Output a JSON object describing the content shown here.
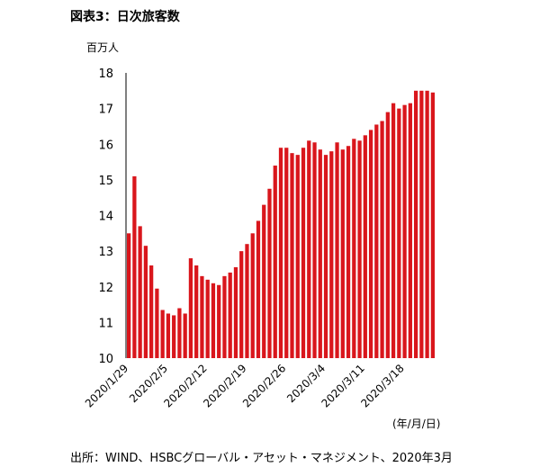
{
  "header": {
    "title": "図表3：日次旅客数"
  },
  "footer": {
    "source": "出所：WIND、HSBCグローバル・アセット・マネジメント、2020年3月"
  },
  "chart_data": {
    "type": "bar",
    "ylabel": "百万人",
    "xlabel": "(年/月/日)",
    "ylim": [
      10,
      18
    ],
    "yticks": [
      10,
      11,
      12,
      13,
      14,
      15,
      16,
      17,
      18
    ],
    "bar_color": "#d9161c",
    "tick_labels": [
      {
        "index": 0,
        "label": "2020/1/29"
      },
      {
        "index": 7,
        "label": "2020/2/5"
      },
      {
        "index": 14,
        "label": "2020/2/12"
      },
      {
        "index": 21,
        "label": "2020/2/19"
      },
      {
        "index": 28,
        "label": "2020/2/26"
      },
      {
        "index": 35,
        "label": "2020/3/4"
      },
      {
        "index": 42,
        "label": "2020/3/11"
      },
      {
        "index": 49,
        "label": "2020/3/18"
      }
    ],
    "categories": [
      "2020/1/29",
      "2020/1/30",
      "2020/1/31",
      "2020/2/1",
      "2020/2/2",
      "2020/2/3",
      "2020/2/4",
      "2020/2/5",
      "2020/2/6",
      "2020/2/7",
      "2020/2/8",
      "2020/2/9",
      "2020/2/10",
      "2020/2/11",
      "2020/2/12",
      "2020/2/13",
      "2020/2/14",
      "2020/2/15",
      "2020/2/16",
      "2020/2/17",
      "2020/2/18",
      "2020/2/19",
      "2020/2/20",
      "2020/2/21",
      "2020/2/22",
      "2020/2/23",
      "2020/2/24",
      "2020/2/25",
      "2020/2/26",
      "2020/2/27",
      "2020/2/28",
      "2020/2/29",
      "2020/3/1",
      "2020/3/2",
      "2020/3/3",
      "2020/3/4",
      "2020/3/5",
      "2020/3/6",
      "2020/3/7",
      "2020/3/8",
      "2020/3/9",
      "2020/3/10",
      "2020/3/11",
      "2020/3/12",
      "2020/3/13",
      "2020/3/14",
      "2020/3/15",
      "2020/3/16",
      "2020/3/17",
      "2020/3/18",
      "2020/3/19",
      "2020/3/20",
      "2020/3/21",
      "2020/3/22",
      "2020/3/23"
    ],
    "values": [
      13.5,
      15.1,
      13.7,
      13.15,
      12.6,
      11.95,
      11.35,
      11.25,
      11.2,
      11.4,
      11.25,
      12.8,
      12.6,
      12.3,
      12.2,
      12.1,
      12.05,
      12.3,
      12.4,
      12.55,
      13.0,
      13.2,
      13.5,
      13.85,
      14.3,
      14.75,
      15.4,
      15.9,
      15.9,
      15.75,
      15.7,
      15.9,
      16.1,
      16.05,
      15.85,
      15.7,
      15.8,
      16.05,
      15.85,
      15.95,
      16.15,
      16.1,
      16.25,
      16.4,
      16.55,
      16.65,
      16.9,
      17.15,
      17.0,
      17.1,
      17.15,
      17.5,
      17.5,
      17.5,
      17.45
    ]
  }
}
